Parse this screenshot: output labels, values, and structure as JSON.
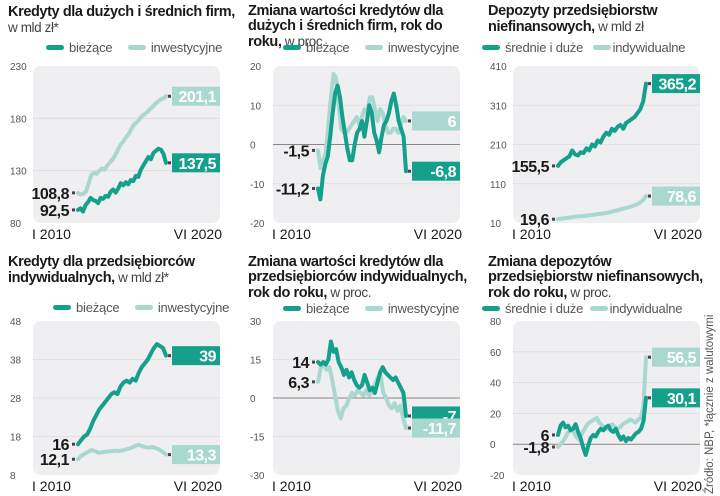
{
  "colors": {
    "dark": "#14a08a",
    "light": "#a8d8d0",
    "plot_bg": "#efeef0",
    "text": "#1a1a1a",
    "axis": "#555555"
  },
  "x_labels": {
    "start": "I 2010",
    "end": "VI 2020"
  },
  "source_note": "Źródło: NBP, *łącznie z walutowymi",
  "chart_data": [
    {
      "id": "c1",
      "type": "line",
      "title_bold": "Kredyty dla dużych i średnich firm,",
      "title_unit": " w mld zł*",
      "legend": [
        "bieżące",
        "inwestycyjne"
      ],
      "ylim": [
        80,
        230
      ],
      "yticks": [
        80,
        130,
        180,
        230
      ],
      "x": [
        "I 2010",
        "VI 2020"
      ],
      "series": [
        {
          "name": "bieżące",
          "color": "dark",
          "start": 92.5,
          "end": 137.5,
          "start_label": "92,5",
          "end_label": "137,5",
          "values": [
            92.5,
            94,
            91,
            97,
            100,
            104,
            102,
            101,
            99,
            104,
            103,
            106,
            105,
            110,
            112,
            109,
            113,
            118,
            116,
            119,
            117,
            121,
            120,
            125,
            124,
            131,
            135,
            139,
            143,
            141,
            147,
            149,
            151,
            150,
            146,
            137.5
          ]
        },
        {
          "name": "inwestycyjne",
          "color": "light",
          "start": 108.8,
          "end": 201.1,
          "start_label": "108,8",
          "end_label": "201,1",
          "values": [
            108.8,
            107,
            108,
            110,
            118,
            126,
            128,
            127,
            130,
            132,
            131,
            135,
            138,
            141,
            145,
            150,
            155,
            158,
            162,
            165,
            170,
            174,
            176,
            179,
            182,
            184,
            186,
            189,
            191,
            194,
            196,
            198,
            199,
            201.1
          ]
        }
      ]
    },
    {
      "id": "c2",
      "type": "line",
      "title_bold": "Zmiana wartości kredytów dla dużych i średnich firm, rok do roku,",
      "title_unit": " w proc.",
      "legend": [
        "bieżące",
        "inwestycyjne"
      ],
      "ylim": [
        -20,
        20
      ],
      "yticks": [
        -20,
        -10,
        0,
        10,
        20
      ],
      "x": [
        "I 2010",
        "VI 2020"
      ],
      "series": [
        {
          "name": "bieżące",
          "color": "dark",
          "start": -11.2,
          "end": -6.8,
          "start_label": "-11,2",
          "end_label": "-6,8",
          "values": [
            -11.2,
            -14,
            -8,
            -5,
            -3,
            2,
            8,
            13,
            15,
            12,
            7,
            3,
            -1,
            -4,
            -4,
            0,
            3,
            4,
            6,
            2,
            6,
            10,
            8,
            3,
            1,
            -2,
            2,
            5,
            6,
            8,
            11,
            13,
            10,
            6,
            4,
            2,
            -6.8
          ]
        },
        {
          "name": "inwestycyjne",
          "color": "light",
          "start": -1.5,
          "end": 6,
          "start_label": "-1,5",
          "end_label": "6",
          "values": [
            -1.5,
            -6,
            -4,
            -2,
            5,
            12,
            18,
            17,
            10,
            4,
            3,
            3,
            4,
            5,
            6,
            7,
            5,
            7,
            9,
            8,
            12,
            12,
            9,
            6,
            9,
            8,
            5,
            3,
            3,
            4,
            4,
            3,
            5,
            7,
            6
          ]
        }
      ]
    },
    {
      "id": "c3",
      "type": "line",
      "title_bold": "Depozyty przedsiębiorstw niefinansowych,",
      "title_unit": " w mld zł",
      "legend": [
        "średnie i duże",
        "indywidualne"
      ],
      "ylim": [
        10,
        410
      ],
      "yticks": [
        10,
        110,
        210,
        310,
        410
      ],
      "x": [
        "I 2010",
        "VI 2020"
      ],
      "series": [
        {
          "name": "średnie i duże",
          "color": "dark",
          "start": 155.5,
          "end": 365.2,
          "start_label": "155,5",
          "end_label": "365,2",
          "values": [
            155.5,
            165,
            170,
            175,
            180,
            195,
            185,
            182,
            190,
            188,
            200,
            195,
            210,
            205,
            220,
            215,
            230,
            240,
            235,
            250,
            245,
            255,
            260,
            250,
            265,
            270,
            275,
            280,
            290,
            300,
            320,
            365.2
          ]
        },
        {
          "name": "indywidualne",
          "color": "light",
          "start": 19.6,
          "end": 78.6,
          "start_label": "19,6",
          "end_label": "78,6",
          "values": [
            19.6,
            21,
            22,
            23,
            24,
            25,
            26,
            27,
            27,
            28,
            29,
            30,
            31,
            32,
            33,
            34,
            35,
            36,
            38,
            40,
            42,
            44,
            46,
            48,
            50,
            52,
            55,
            58,
            62,
            68,
            78.6
          ]
        }
      ]
    },
    {
      "id": "c4",
      "type": "line",
      "title_bold": "Kredyty dla przedsiębiorców indywidualnych,",
      "title_unit": " w mld zł*",
      "legend": [
        "bieżące",
        "inwestycyjne"
      ],
      "ylim": [
        8,
        48
      ],
      "yticks": [
        8,
        18,
        28,
        38,
        48
      ],
      "x": [
        "I 2010",
        "VI 2020"
      ],
      "series": [
        {
          "name": "bieżące",
          "color": "dark",
          "start": 16,
          "end": 39,
          "start_label": "16",
          "end_label": "39",
          "values": [
            16,
            17,
            18,
            18.5,
            20,
            22,
            23.5,
            25,
            26,
            27,
            28,
            29,
            29.5,
            29,
            31,
            32,
            32.5,
            32,
            33,
            32.5,
            34.5,
            36,
            37,
            38,
            39.5,
            41,
            42,
            41.5,
            41,
            39
          ]
        },
        {
          "name": "inwestycyjne",
          "color": "light",
          "start": 12.1,
          "end": 13.3,
          "start_label": "12,1",
          "end_label": "13,3",
          "values": [
            12.1,
            13,
            13.5,
            14,
            14.5,
            14.2,
            13.8,
            13.9,
            14,
            14.1,
            14.2,
            14.3,
            14.2,
            14.4,
            14.6,
            14.8,
            15.2,
            15.6,
            15.8,
            15.5,
            15.2,
            15.1,
            15.3,
            15,
            14.6,
            14,
            13.3
          ]
        }
      ]
    },
    {
      "id": "c5",
      "type": "line",
      "title_bold": "Zmiana wartości kredytów dla przedsiębiorców indywidualnych, rok do roku,",
      "title_unit": " w proc.",
      "legend": [
        "bieżące",
        "inwestycyjne"
      ],
      "ylim": [
        -30,
        30
      ],
      "yticks": [
        -30,
        -15,
        0,
        15,
        30
      ],
      "x": [
        "I 2010",
        "VI 2020"
      ],
      "series": [
        {
          "name": "bieżące",
          "color": "dark",
          "start": 14,
          "end": -7,
          "start_label": "14",
          "end_label": "-7",
          "values": [
            14,
            13,
            14,
            13,
            15,
            22,
            18,
            19,
            14,
            12,
            9,
            11,
            8,
            10,
            7,
            5,
            4,
            5,
            9,
            6,
            3,
            4,
            2,
            6,
            10,
            12,
            10,
            9,
            8,
            7,
            8,
            6,
            4,
            2,
            -7
          ]
        },
        {
          "name": "inwestycyjne",
          "color": "light",
          "start": 6.3,
          "end": -11.7,
          "start_label": "6,3",
          "end_label": "-11,7",
          "values": [
            6.3,
            12,
            13,
            11,
            12,
            7,
            1,
            -5,
            -8,
            -4,
            -3,
            0,
            2,
            1,
            3,
            2,
            1,
            3,
            1,
            2,
            5,
            8,
            9,
            2,
            0,
            -3,
            -4,
            -2,
            -5,
            -3,
            -8,
            -11.7
          ]
        }
      ]
    },
    {
      "id": "c6",
      "type": "line",
      "title_bold": "Zmiana depozytów przedsiębiorstw niefinansowych, rok do roku,",
      "title_unit": " w proc.",
      "legend": [
        "średnie i duże",
        "indywidualne"
      ],
      "ylim": [
        -20,
        80
      ],
      "yticks": [
        -20,
        0,
        20,
        40,
        60,
        80
      ],
      "x": [
        "I 2010",
        "VI 2020"
      ],
      "series": [
        {
          "name": "średnie i duże",
          "color": "dark",
          "start": 6,
          "end": 30.1,
          "start_label": "6",
          "end_label": "30,1",
          "values": [
            6,
            12,
            14,
            11,
            12,
            9,
            10,
            13,
            8,
            4,
            -2,
            -7,
            -1,
            4,
            6,
            5,
            8,
            10,
            9,
            11,
            12,
            9,
            8,
            10,
            6,
            3,
            5,
            2,
            4,
            3,
            5,
            7,
            8,
            10,
            15,
            30.1
          ]
        },
        {
          "name": "indywidualne",
          "color": "light",
          "start": -1.8,
          "end": 56.5,
          "start_label": "-1,8",
          "end_label": "56,5",
          "values": [
            -1.8,
            0,
            2,
            5,
            8,
            10,
            8,
            5,
            3,
            6,
            9,
            12,
            14,
            15,
            16,
            17,
            14,
            12,
            11,
            10,
            12,
            13,
            11,
            10,
            11,
            13,
            14,
            15,
            16,
            15,
            14,
            16,
            17,
            25,
            56.5
          ]
        }
      ]
    }
  ]
}
